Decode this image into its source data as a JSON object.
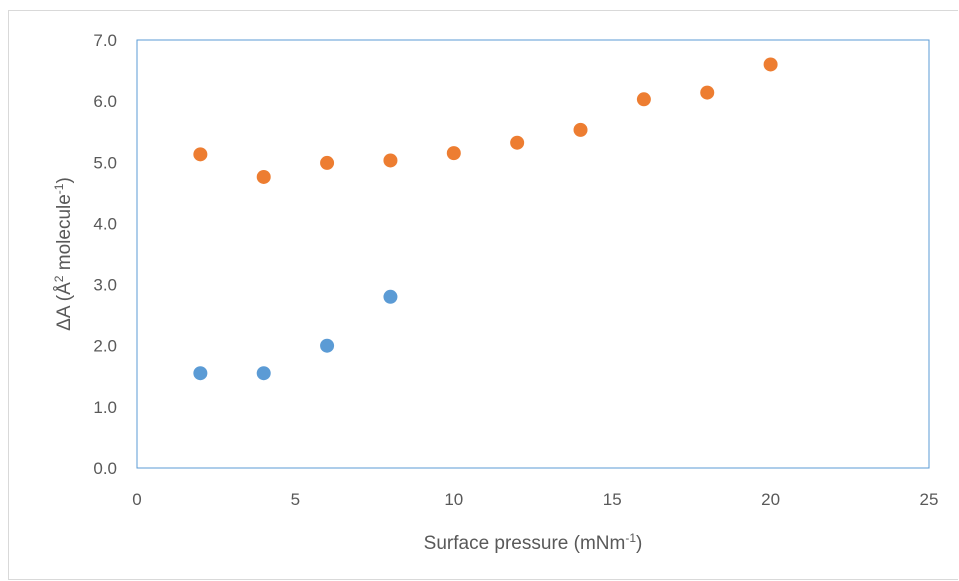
{
  "chart_data": {
    "type": "scatter",
    "title": "",
    "xlabel": {
      "main": "Surface pressure (mNm",
      "sup": "-1",
      "tail": ")"
    },
    "ylabel": {
      "main": "ΔA (Å",
      "sup1": "2",
      "mid": " molecule",
      "sup2": "-1",
      "tail": ")"
    },
    "xlim": [
      0,
      25
    ],
    "ylim": [
      0,
      7
    ],
    "xticks": [
      "0",
      "5",
      "10",
      "15",
      "20",
      "25"
    ],
    "xtick_values": [
      0,
      5,
      10,
      15,
      20,
      25
    ],
    "yticks": [
      "0.0",
      "1.0",
      "2.0",
      "3.0",
      "4.0",
      "5.0",
      "6.0",
      "7.0"
    ],
    "ytick_values": [
      0,
      1,
      2,
      3,
      4,
      5,
      6,
      7
    ],
    "grid": false,
    "legend": "none",
    "series": [
      {
        "color": "#5b9bd5",
        "x": [
          2,
          4,
          6,
          8
        ],
        "y": [
          1.55,
          1.55,
          2.0,
          2.8
        ]
      },
      {
        "color": "#ed7d31",
        "x": [
          2,
          4,
          6,
          8,
          10,
          12,
          14,
          16,
          18,
          20
        ],
        "y": [
          5.13,
          4.76,
          4.99,
          5.03,
          5.15,
          5.32,
          5.53,
          6.03,
          6.14,
          6.6
        ]
      }
    ]
  }
}
